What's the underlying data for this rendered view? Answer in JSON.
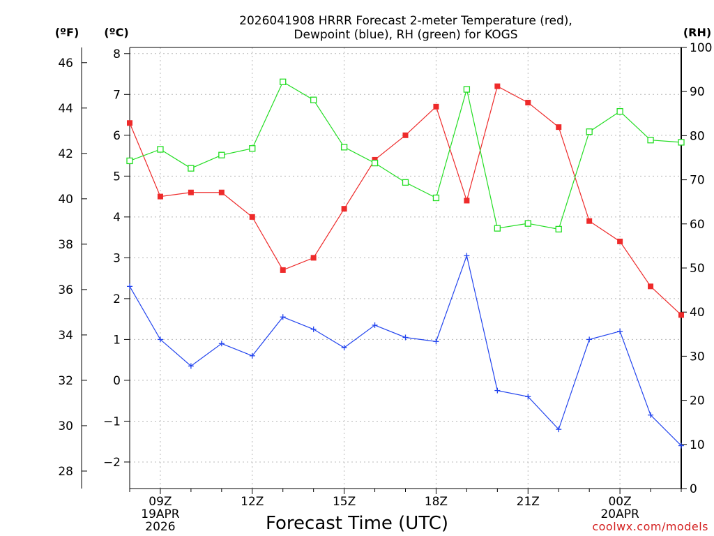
{
  "title_line1": "2026041908 HRRR Forecast 2-meter Temperature (red),",
  "title_line2": "Dewpoint (blue), RH (green) for KOGS",
  "watermark": "coolwx.com/models",
  "chart_data": {
    "type": "line",
    "title": "2026041908 HRRR Forecast 2-meter Temperature (red), Dewpoint (blue), RH (green) for KOGS",
    "xlabel": "Forecast Time (UTC)",
    "x_hours": [
      8,
      9,
      10,
      11,
      12,
      13,
      14,
      15,
      16,
      17,
      18,
      19,
      20,
      21,
      22,
      23,
      24,
      25,
      26
    ],
    "x_ticks": [
      {
        "hour": 9,
        "label": "09Z",
        "sub1": "19APR",
        "sub2": "2026"
      },
      {
        "hour": 12,
        "label": "12Z",
        "sub1": "",
        "sub2": ""
      },
      {
        "hour": 15,
        "label": "15Z",
        "sub1": "",
        "sub2": ""
      },
      {
        "hour": 18,
        "label": "18Z",
        "sub1": "",
        "sub2": ""
      },
      {
        "hour": 21,
        "label": "21Z",
        "sub1": "",
        "sub2": ""
      },
      {
        "hour": 24,
        "label": "00Z",
        "sub1": "20APR",
        "sub2": ""
      }
    ],
    "xlim": [
      8,
      26
    ],
    "y_celsius": {
      "unit_label": "(ºC)",
      "range": [
        -2.65,
        8.15
      ],
      "ticks": [
        -2,
        -1,
        0,
        1,
        2,
        3,
        4,
        5,
        6,
        7,
        8
      ]
    },
    "y_fahrenheit": {
      "unit_label": "(ºF)",
      "ticks": [
        28,
        30,
        32,
        34,
        36,
        38,
        40,
        42,
        44,
        46
      ]
    },
    "y_rh": {
      "unit_label": "(RH)",
      "range": [
        0,
        100
      ],
      "ticks": [
        0,
        10,
        20,
        30,
        40,
        50,
        60,
        70,
        80,
        90,
        100
      ]
    },
    "series": [
      {
        "name": "2-meter Temperature",
        "axis": "celsius",
        "color": "#ee2a2a",
        "marker": "filled-square",
        "values": [
          6.3,
          4.5,
          4.6,
          4.6,
          4.0,
          2.7,
          3.0,
          4.2,
          5.4,
          6.0,
          6.7,
          4.4,
          7.2,
          6.8,
          6.2,
          3.9,
          3.4,
          2.3,
          1.6
        ]
      },
      {
        "name": "Dewpoint",
        "axis": "celsius",
        "color": "#2244ee",
        "marker": "plus",
        "values": [
          2.3,
          1.0,
          0.35,
          0.9,
          0.6,
          1.55,
          1.25,
          0.8,
          1.35,
          1.05,
          0.95,
          3.05,
          -0.25,
          -0.4,
          -1.2,
          1.0,
          1.2,
          -0.85,
          -1.6
        ]
      },
      {
        "name": "RH",
        "axis": "rh",
        "color": "#22dd22",
        "marker": "open-square",
        "values": [
          74.3,
          76.9,
          72.6,
          75.6,
          77.1,
          92.2,
          88.1,
          77.4,
          73.8,
          69.4,
          65.9,
          90.5,
          59.0,
          60.1,
          58.8,
          80.9,
          85.5,
          79.0,
          78.5
        ]
      }
    ]
  }
}
